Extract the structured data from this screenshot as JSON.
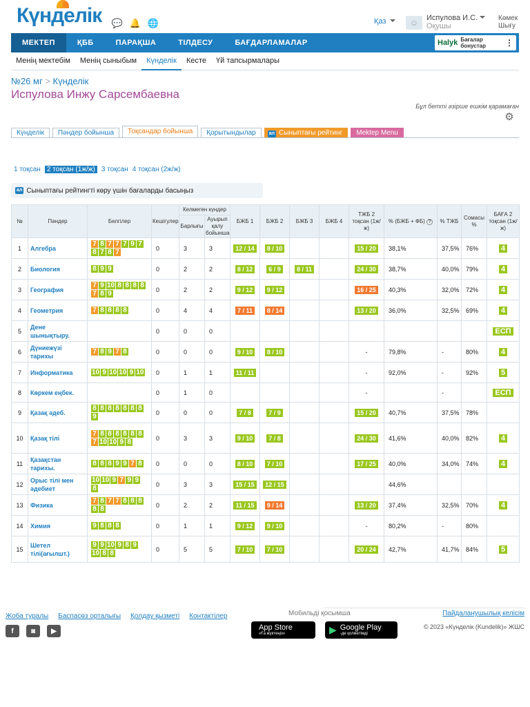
{
  "header": {
    "logo": "Күнделік",
    "language": "Қаз",
    "user_name": "Испулова И.С.",
    "user_role": "Оқушы",
    "help_line1": "Көмек",
    "help_line2": "Шығу"
  },
  "nav": {
    "items": [
      "МЕКТЕП",
      "ҚББ",
      "ПАРАҚША",
      "ТІЛДЕСУ",
      "БАҒДАРЛАМАЛАР"
    ],
    "halyk_brand": "Halyk",
    "halyk_line1": "Бағалар",
    "halyk_line2": "бонустар"
  },
  "subnav": [
    "Менің мектебім",
    "Менің сыныбым",
    "Күнделік",
    "Кесте",
    "Үй тапсырмалары"
  ],
  "breadcrumb": {
    "school": "№26 мг",
    "sep": ">",
    "page": "Күнделік"
  },
  "student_name": "Испулова Инжу Сарсембаевна",
  "notice": "Бұл бетті әзірше ешкім қарамаған",
  "tabs": [
    "Күнделік",
    "Пәндер бойынша",
    "Тоқсандар бойынша",
    "Қорытындылар",
    "Сыныптағы рейтинг",
    "Mektep Menu"
  ],
  "badge": "ал",
  "terms": [
    "1 тоқсан",
    "2 тоқсан (1ж/ж)",
    "3 тоқсан",
    "4 тоқсан (2ж/ж)"
  ],
  "rating_hint": "Сыныптағы рейтингті көру үшін бағаларды басыңыз",
  "table": {
    "headers": {
      "num": "№",
      "subject": "Пәндер",
      "marks": "Белгілер",
      "late": "Кешігулер",
      "absent_group": "Келмеген күндер",
      "absent_total": "Барлығы",
      "absent_ill": "Ауырып қалу бойынша",
      "bzhb1": "БЖБ 1",
      "bzhb2": "БЖБ 2",
      "bzhb3": "БЖБ 3",
      "bzhb4": "БЖБ 4",
      "tzhb": "ТЖБ 2 тоқсан (1ж/ж)",
      "pct_sum": "% (БЖБ + ФБ)",
      "pct_tzhb": "% ТЖБ",
      "total": "Сомасы %",
      "grade": "БАҒА 2 тоқсан (1ж/ж)"
    },
    "rows": [
      {
        "n": "1",
        "subject": "Алгебра",
        "marks": [
          "7o",
          "8",
          "7o",
          "7o",
          "7",
          "9",
          "7",
          "8",
          "7",
          "8",
          "7o"
        ],
        "late": "0",
        "abs": "3",
        "ill": "3",
        "b1": "12 / 14",
        "b2": "8 / 10",
        "b3": "",
        "b4": "",
        "tzhb": "15 / 20",
        "pct": "38,1%",
        "ptzhb": "37,5%",
        "sum": "76%",
        "grade": "4"
      },
      {
        "n": "2",
        "subject": "Биология",
        "marks": [
          "8",
          "9",
          "9"
        ],
        "late": "0",
        "abs": "2",
        "ill": "2",
        "b1": "8 / 12",
        "b2": "6 / 9",
        "b3": "8 / 11",
        "b4": "",
        "tzhb": "24 / 30",
        "pct": "38,7%",
        "ptzhb": "40,0%",
        "sum": "79%",
        "grade": "4"
      },
      {
        "n": "3",
        "subject": "География",
        "marks": [
          "7o",
          "9",
          "10",
          "8",
          "8",
          "8",
          "8",
          "7o",
          "8",
          "9"
        ],
        "late": "0",
        "abs": "2",
        "ill": "2",
        "b1": "9 / 12",
        "b2": "9 / 12",
        "b3": "",
        "b4": "",
        "tzhb": "16 / 25",
        "tzhbc": "r",
        "pct": "40,3%",
        "ptzhb": "32,0%",
        "sum": "72%",
        "grade": "4"
      },
      {
        "n": "4",
        "subject": "Геометрия",
        "marks": [
          "7o",
          "8",
          "8",
          "8",
          "8"
        ],
        "late": "0",
        "abs": "4",
        "ill": "4",
        "b1": "7 / 11",
        "b1c": "r",
        "b2": "8 / 14",
        "b2c": "r",
        "b3": "",
        "b4": "",
        "tzhb": "13 / 20",
        "pct": "36,0%",
        "ptzhb": "32,5%",
        "sum": "69%",
        "grade": "4"
      },
      {
        "n": "5",
        "subject": "Дене шынықтыру.",
        "marks": [],
        "late": "0",
        "abs": "0",
        "ill": "0",
        "b1": "",
        "b2": "",
        "b3": "",
        "b4": "",
        "tzhb": "",
        "pct": "",
        "ptzhb": "",
        "sum": "",
        "grade": "ЕСП"
      },
      {
        "n": "6",
        "subject": "Дүниежүзі тарихы",
        "marks": [
          "7o",
          "8",
          "9",
          "7o",
          "8"
        ],
        "late": "0",
        "abs": "0",
        "ill": "0",
        "b1": "9 / 10",
        "b2": "8 / 10",
        "b3": "",
        "b4": "",
        "tzhb": "-",
        "pct": "79,8%",
        "ptzhb": "-",
        "sum": "80%",
        "grade": "4"
      },
      {
        "n": "7",
        "subject": "Информатика",
        "marks": [
          "10",
          "9",
          "10",
          "10",
          "9",
          "10"
        ],
        "late": "0",
        "abs": "1",
        "ill": "1",
        "b1": "11 / 11",
        "b2": "",
        "b3": "",
        "b4": "",
        "tzhb": "-",
        "pct": "92,0%",
        "ptzhb": "-",
        "sum": "92%",
        "grade": "5"
      },
      {
        "n": "8",
        "subject": "Көркем еңбек.",
        "marks": [],
        "late": "0",
        "abs": "1",
        "ill": "0",
        "b1": "",
        "b2": "",
        "b3": "",
        "b4": "",
        "tzhb": "-",
        "pct": "",
        "ptzhb": "-",
        "sum": "",
        "grade": "ЕСП"
      },
      {
        "n": "9",
        "subject": "Қазақ әдеб.",
        "marks": [
          "8",
          "8",
          "8",
          "8",
          "8",
          "8",
          "8",
          "9"
        ],
        "late": "0",
        "abs": "0",
        "ill": "0",
        "b1": "7 / 8",
        "b2": "7 / 9",
        "b3": "",
        "b4": "",
        "tzhb": "15 / 20",
        "pct": "40,7%",
        "ptzhb": "37,5%",
        "sum": "78%",
        "grade": ""
      },
      {
        "n": "10",
        "subject": "Қазақ тілі",
        "marks": [
          "7o",
          "8",
          "8",
          "8",
          "8",
          "8",
          "8",
          "7o",
          "10",
          "10",
          "9",
          "8"
        ],
        "late": "0",
        "abs": "3",
        "ill": "3",
        "b1": "9 / 10",
        "b2": "7 / 8",
        "b3": "",
        "b4": "",
        "tzhb": "24 / 30",
        "pct": "41,6%",
        "ptzhb": "40,0%",
        "sum": "82%",
        "grade": "4"
      },
      {
        "n": "11",
        "subject": "Қазақстан тарихы.",
        "marks": [
          "8",
          "8",
          "8",
          "9",
          "9",
          "7o",
          "8"
        ],
        "late": "0",
        "abs": "0",
        "ill": "0",
        "b1": "8 / 10",
        "b2": "7 / 10",
        "b3": "",
        "b4": "",
        "tzhb": "17 / 25",
        "pct": "40,0%",
        "ptzhb": "34,0%",
        "sum": "74%",
        "grade": "4"
      },
      {
        "n": "12",
        "subject": "Орыс тілі мен әдебиет",
        "marks": [
          "10",
          "10",
          "9",
          "7o",
          "9",
          "9",
          "8"
        ],
        "late": "0",
        "abs": "3",
        "ill": "3",
        "b1": "15 / 15",
        "b2": "12 / 15",
        "b3": "",
        "b4": "",
        "tzhb": "",
        "pct": "44,6%",
        "ptzhb": "",
        "sum": "",
        "grade": ""
      },
      {
        "n": "13",
        "subject": "Физика",
        "marks": [
          "7o",
          "8",
          "7o",
          "7o",
          "8",
          "8",
          "8",
          "8",
          "8"
        ],
        "late": "0",
        "abs": "2",
        "ill": "2",
        "b1": "11 / 15",
        "b2": "9 / 14",
        "b2c": "r",
        "b3": "",
        "b4": "",
        "tzhb": "13 / 20",
        "pct": "37,4%",
        "ptzhb": "32,5%",
        "sum": "70%",
        "grade": "4"
      },
      {
        "n": "14",
        "subject": "Химия",
        "marks": [
          "9",
          "8",
          "8",
          "8"
        ],
        "late": "0",
        "abs": "1",
        "ill": "1",
        "b1": "9 / 12",
        "b2": "9 / 10",
        "b3": "",
        "b4": "",
        "tzhb": "-",
        "pct": "80,2%",
        "ptzhb": "-",
        "sum": "80%",
        "grade": ""
      },
      {
        "n": "15",
        "subject": "Шетел тілі(ағылшт.)",
        "marks": [
          "9",
          "9",
          "10",
          "9",
          "8",
          "9",
          "10",
          "8",
          "8"
        ],
        "late": "0",
        "abs": "5",
        "ill": "5",
        "b1": "7 / 10",
        "b2": "7 / 10",
        "b3": "",
        "b4": "",
        "tzhb": "20 / 24",
        "pct": "42,7%",
        "ptzhb": "41,7%",
        "sum": "84%",
        "grade": "5"
      }
    ]
  },
  "footer": {
    "links": [
      "Жоба туралы",
      "Баспасөз орталығы",
      "Қолдау қызметі",
      "Контактілер"
    ],
    "social": [
      "f",
      "◙",
      "▶"
    ],
    "mobile_title": "Мобильді қосымша",
    "appstore_small": "«Ға жүктеңіз»",
    "appstore_big": "App Store",
    "gplay_small": "-де қолжетімді",
    "gplay_big": "Google Play",
    "agreement": "Пайдаланушылық келісім",
    "copyright": "© 2023 «Күнделік (Kundelik)» ЖШС"
  },
  "colors": {
    "brand": "#1f7fc0",
    "good": "#9ac71f",
    "mid": "#f19a2a",
    "low": "#f27930",
    "name": "#a44a9a"
  }
}
